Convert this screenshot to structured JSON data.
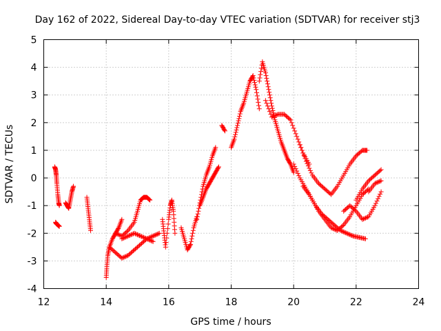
{
  "chart_data": {
    "type": "scatter",
    "title": "Day 162 of 2022, Sidereal Day-to-day VTEC variation (SDTVAR) for receiver stj3",
    "xlabel": "GPS time / hours",
    "ylabel": "SDTVAR / TECUs",
    "xlim": [
      12,
      24
    ],
    "ylim": [
      -4,
      5
    ],
    "xticks": [
      12,
      14,
      16,
      18,
      20,
      22,
      24
    ],
    "yticks": [
      -4,
      -3,
      -2,
      -1,
      0,
      1,
      2,
      3,
      4,
      5
    ],
    "grid": true,
    "marker": "+",
    "color": "#ff0000",
    "series": [
      {
        "name": "s1",
        "x": [
          12.35,
          12.38,
          12.4,
          12.42,
          12.45,
          12.48,
          12.5
        ],
        "y": [
          0.4,
          0.3,
          0.1,
          -0.2,
          -0.6,
          -0.9,
          -1.0
        ]
      },
      {
        "name": "s2",
        "x": [
          12.38,
          12.4,
          12.45,
          12.5
        ],
        "y": [
          -1.6,
          -1.65,
          -1.7,
          -1.75
        ]
      },
      {
        "name": "s3",
        "x": [
          12.7,
          12.75,
          12.8,
          12.85,
          12.9,
          12.95
        ],
        "y": [
          -0.9,
          -1.0,
          -1.1,
          -0.8,
          -0.5,
          -0.3
        ]
      },
      {
        "name": "s4",
        "x": [
          13.38,
          13.42,
          13.46,
          13.5
        ],
        "y": [
          -0.7,
          -1.1,
          -1.5,
          -1.9
        ]
      },
      {
        "name": "s5",
        "x": [
          14.0,
          14.02,
          14.05,
          14.1,
          14.2,
          14.3,
          14.4,
          14.5
        ],
        "y": [
          -3.6,
          -3.2,
          -2.8,
          -2.5,
          -2.2,
          -2.0,
          -1.8,
          -1.5
        ]
      },
      {
        "name": "s6",
        "x": [
          14.1,
          14.3,
          14.5,
          14.7,
          14.9,
          15.1,
          15.3,
          15.5
        ],
        "y": [
          -2.5,
          -2.7,
          -2.9,
          -2.8,
          -2.6,
          -2.4,
          -2.2,
          -2.3
        ]
      },
      {
        "name": "s7",
        "x": [
          14.3,
          14.5,
          14.7,
          14.9,
          15.0,
          15.1,
          15.2,
          15.3,
          15.4
        ],
        "y": [
          -2.0,
          -2.1,
          -1.9,
          -1.6,
          -1.2,
          -0.8,
          -0.7,
          -0.7,
          -0.8
        ]
      },
      {
        "name": "s8",
        "x": [
          14.5,
          14.7,
          14.9,
          15.1,
          15.3,
          15.5,
          15.7
        ],
        "y": [
          -2.2,
          -2.1,
          -2.0,
          -2.1,
          -2.2,
          -2.1,
          -2.0
        ]
      },
      {
        "name": "s9",
        "x": [
          15.8,
          15.85,
          15.9,
          16.0,
          16.05,
          16.1,
          16.15,
          16.2
        ],
        "y": [
          -1.5,
          -2.0,
          -2.5,
          -1.5,
          -1.0,
          -0.8,
          -1.2,
          -2.0
        ]
      },
      {
        "name": "s10",
        "x": [
          16.4,
          16.5,
          16.6,
          16.7,
          16.8,
          16.9
        ],
        "y": [
          -1.8,
          -2.2,
          -2.6,
          -2.4,
          -1.8,
          -1.4
        ]
      },
      {
        "name": "s11",
        "x": [
          16.9,
          17.0,
          17.1,
          17.2,
          17.3,
          17.4,
          17.5
        ],
        "y": [
          -1.5,
          -0.9,
          -0.3,
          0.1,
          0.4,
          0.8,
          1.1
        ]
      },
      {
        "name": "s12",
        "x": [
          17.0,
          17.1,
          17.2,
          17.3,
          17.4,
          17.5,
          17.6
        ],
        "y": [
          -1.0,
          -0.7,
          -0.4,
          -0.2,
          0.0,
          0.2,
          0.4
        ]
      },
      {
        "name": "s13",
        "x": [
          17.7,
          17.8
        ],
        "y": [
          1.9,
          1.7
        ]
      },
      {
        "name": "s14",
        "x": [
          18.0,
          18.1,
          18.2,
          18.3,
          18.4,
          18.5,
          18.6,
          18.7,
          18.8,
          18.9
        ],
        "y": [
          1.1,
          1.4,
          1.9,
          2.4,
          2.7,
          3.1,
          3.5,
          3.7,
          3.2,
          2.5
        ]
      },
      {
        "name": "s15",
        "x": [
          18.9,
          19.0,
          19.1,
          19.2,
          19.3,
          19.4,
          19.5,
          19.6,
          19.7,
          19.8,
          19.9,
          20.0
        ],
        "y": [
          3.5,
          4.2,
          3.8,
          3.2,
          2.6,
          2.1,
          1.7,
          1.3,
          1.0,
          0.7,
          0.5,
          0.2
        ]
      },
      {
        "name": "s16",
        "x": [
          19.1,
          19.3,
          19.5,
          19.7,
          19.9,
          20.1,
          20.3,
          20.5
        ],
        "y": [
          2.8,
          2.2,
          2.3,
          2.3,
          2.1,
          1.5,
          0.9,
          0.5
        ]
      },
      {
        "name": "s17",
        "x": [
          20.0,
          20.2,
          20.4,
          20.6,
          20.8,
          21.0,
          21.2,
          21.4,
          21.6,
          21.8,
          22.0,
          22.2,
          22.4
        ],
        "y": [
          0.5,
          0.0,
          -0.4,
          -0.8,
          -1.2,
          -1.5,
          -1.8,
          -1.9,
          -1.7,
          -1.4,
          -1.0,
          -0.6,
          -0.4
        ]
      },
      {
        "name": "s18",
        "x": [
          20.2,
          20.4,
          20.6,
          20.8,
          21.0,
          21.2,
          21.4,
          21.6,
          21.8,
          22.0,
          22.2,
          22.35
        ],
        "y": [
          1.2,
          0.6,
          0.1,
          -0.2,
          -0.4,
          -0.6,
          -0.3,
          0.1,
          0.5,
          0.8,
          1.0,
          1.0
        ]
      },
      {
        "name": "s19",
        "x": [
          20.3,
          20.5,
          20.7,
          20.9,
          21.1,
          21.3,
          21.5,
          21.7,
          21.9,
          22.1,
          22.3
        ],
        "y": [
          -0.3,
          -0.6,
          -1.0,
          -1.3,
          -1.5,
          -1.7,
          -1.9,
          -2.0,
          -2.1,
          -2.15,
          -2.2
        ]
      },
      {
        "name": "s20",
        "x": [
          21.6,
          21.8,
          22.0,
          22.2,
          22.4,
          22.6,
          22.8
        ],
        "y": [
          -1.2,
          -1.0,
          -1.2,
          -1.5,
          -1.4,
          -1.0,
          -0.5
        ]
      },
      {
        "name": "s21",
        "x": [
          22.0,
          22.2,
          22.4,
          22.6,
          22.8
        ],
        "y": [
          -0.8,
          -0.4,
          -0.1,
          0.1,
          0.3
        ]
      },
      {
        "name": "s22",
        "x": [
          22.4,
          22.6,
          22.8
        ],
        "y": [
          -0.5,
          -0.2,
          -0.1
        ]
      }
    ]
  }
}
